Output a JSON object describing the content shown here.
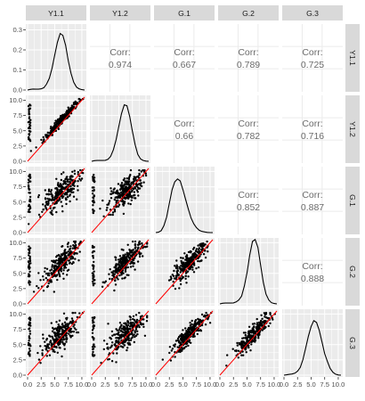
{
  "chart_data": {
    "type": "scatter_matrix",
    "variables": [
      "Y1.1",
      "Y1.2",
      "G.1",
      "G.2",
      "G.3"
    ],
    "colors": {
      "panel_bg": "#ebebeb",
      "grid": "#ffffff",
      "strip_bg": "#d9d9d9",
      "points": "#000000",
      "identity_line": "#ff0000",
      "density_line": "#000000",
      "corr_text": "#6b6b6b"
    },
    "corr_label": "Corr:",
    "correlations": [
      {
        "row": "Y1.1",
        "col": "Y1.2",
        "value": "0.974"
      },
      {
        "row": "Y1.1",
        "col": "G.1",
        "value": "0.667"
      },
      {
        "row": "Y1.1",
        "col": "G.2",
        "value": "0.789"
      },
      {
        "row": "Y1.1",
        "col": "G.3",
        "value": "0.725"
      },
      {
        "row": "Y1.2",
        "col": "G.1",
        "value": "0.66"
      },
      {
        "row": "Y1.2",
        "col": "G.2",
        "value": "0.782"
      },
      {
        "row": "Y1.2",
        "col": "G.3",
        "value": "0.716"
      },
      {
        "row": "G.1",
        "col": "G.2",
        "value": "0.852"
      },
      {
        "row": "G.1",
        "col": "G.3",
        "value": "0.887"
      },
      {
        "row": "G.2",
        "col": "G.3",
        "value": "0.888"
      }
    ],
    "scatter_axis_range": [
      0,
      10.5
    ],
    "y_ticks_scatter": [
      "0.0",
      "2.5",
      "5.0",
      "7.5",
      "10.0"
    ],
    "y_ticks_first_density": [
      "0.0",
      "0.1",
      "0.2",
      "0.3"
    ],
    "x_ticks": [
      "0.0",
      "2.5",
      "5.0",
      "7.5",
      "10.0"
    ],
    "densities": {
      "x": [
        0,
        0.5,
        1,
        1.5,
        2,
        2.5,
        3,
        3.5,
        4,
        4.5,
        5,
        5.5,
        6,
        6.5,
        7,
        7.5,
        8,
        8.5,
        9,
        9.5,
        10,
        10.5
      ],
      "Y1.1": [
        0,
        0.003,
        0.005,
        0.004,
        0.004,
        0.006,
        0.012,
        0.03,
        0.06,
        0.11,
        0.18,
        0.245,
        0.29,
        0.28,
        0.23,
        0.15,
        0.085,
        0.04,
        0.015,
        0.006,
        0.002,
        0
      ],
      "Y1.2": [
        0,
        0.003,
        0.004,
        0.004,
        0.004,
        0.005,
        0.01,
        0.025,
        0.06,
        0.11,
        0.18,
        0.245,
        0.29,
        0.285,
        0.23,
        0.155,
        0.085,
        0.035,
        0.012,
        0.004,
        0.001,
        0
      ],
      "G.1": [
        0,
        0.002,
        0.01,
        0.035,
        0.08,
        0.15,
        0.22,
        0.26,
        0.275,
        0.265,
        0.22,
        0.17,
        0.12,
        0.075,
        0.045,
        0.025,
        0.012,
        0.006,
        0.003,
        0.001,
        0,
        0
      ],
      "G.2": [
        0,
        0.003,
        0.004,
        0.004,
        0.004,
        0.005,
        0.01,
        0.02,
        0.04,
        0.09,
        0.16,
        0.25,
        0.32,
        0.33,
        0.29,
        0.2,
        0.11,
        0.05,
        0.02,
        0.006,
        0.002,
        0
      ],
      "G.3": [
        0,
        0.002,
        0.004,
        0.006,
        0.01,
        0.02,
        0.04,
        0.08,
        0.14,
        0.2,
        0.25,
        0.28,
        0.27,
        0.23,
        0.17,
        0.11,
        0.07,
        0.035,
        0.015,
        0.005,
        0.001,
        0
      ],
      "ylim_first": [
        0,
        0.32
      ]
    },
    "grid": true,
    "diagonal_reference_line": true
  }
}
